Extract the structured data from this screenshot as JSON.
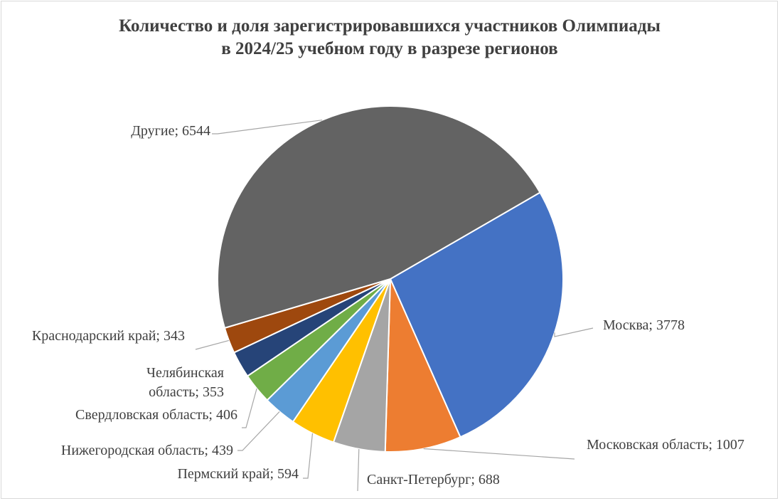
{
  "chart_data": {
    "type": "pie",
    "title_lines": [
      "Количество и доля зарегистрировавшихся участников Олимпиады",
      "в 2024/25 учебном году в разрезе регионов"
    ],
    "slices": [
      {
        "name": "Москва",
        "value": 3778,
        "color": "#4472c4"
      },
      {
        "name": "Московская область",
        "value": 1007,
        "color": "#ed7d31"
      },
      {
        "name": "Санкт-Петербург",
        "value": 688,
        "color": "#a5a5a5"
      },
      {
        "name": "Пермский край",
        "value": 594,
        "color": "#ffc000"
      },
      {
        "name": "Нижегородская область",
        "value": 439,
        "color": "#5b9bd5"
      },
      {
        "name": "Свердловская область",
        "value": 406,
        "color": "#70ad47"
      },
      {
        "name": "Челябинская область",
        "value": 353,
        "color": "#264478"
      },
      {
        "name": "Краснодарский край",
        "value": 343,
        "color": "#9e480e"
      },
      {
        "name": "Другие",
        "value": 6544,
        "color": "#636363"
      }
    ],
    "labels": [
      {
        "lines": [
          "Москва; 3778"
        ]
      },
      {
        "lines": [
          "Московская область; 1007"
        ]
      },
      {
        "lines": [
          "Санкт-Петербург; 688"
        ]
      },
      {
        "lines": [
          "Пермский край; 594"
        ]
      },
      {
        "lines": [
          "Нижегородская область; 439"
        ]
      },
      {
        "lines": [
          "Свердловская область; 406"
        ]
      },
      {
        "lines": [
          "Челябинская",
          "область; 353"
        ]
      },
      {
        "lines": [
          "Краснодарский край; 343"
        ]
      },
      {
        "lines": [
          "Другие; 6544"
        ]
      }
    ]
  }
}
